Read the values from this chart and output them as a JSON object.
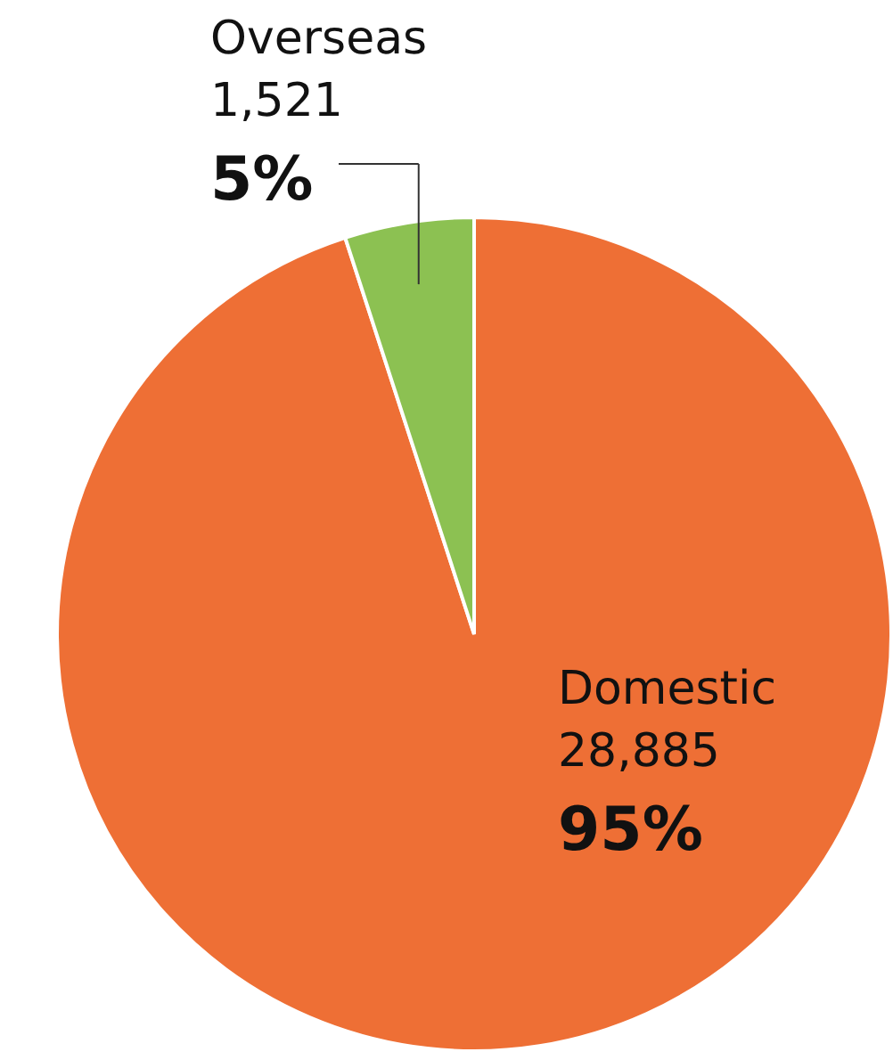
{
  "chart_data": {
    "type": "pie",
    "categories": [
      "Domestic",
      "Overseas"
    ],
    "values": [
      28885,
      1521
    ],
    "colors": [
      "#ee6f35",
      "#8cc152"
    ],
    "value_labels": [
      "28,885",
      "1,521"
    ],
    "annotations": [
      "95%",
      "5%"
    ]
  }
}
